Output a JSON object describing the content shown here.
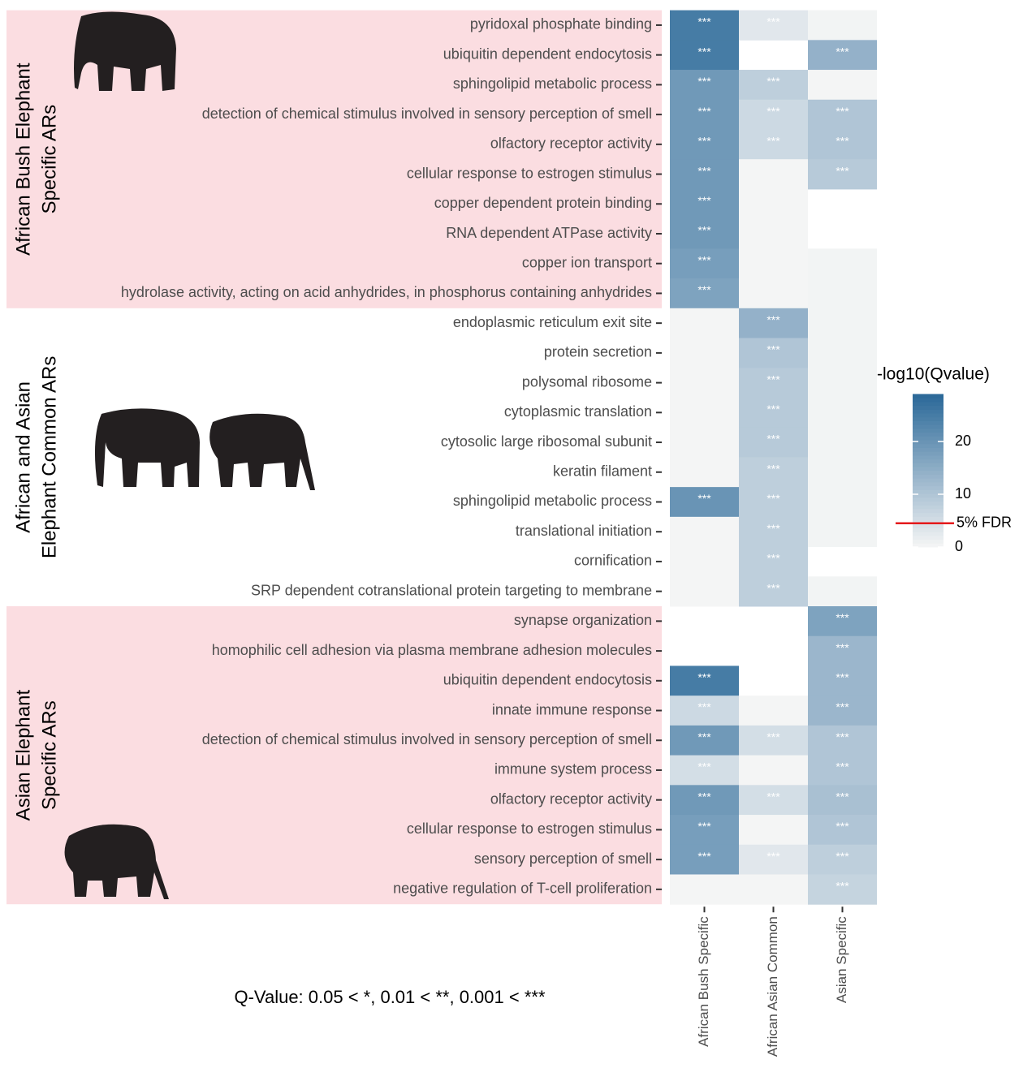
{
  "chart_data": {
    "type": "heatmap",
    "columns": [
      "African Bush Specific",
      "African Asian Common",
      "Asian Specific"
    ],
    "low_color": "#f6f6f6",
    "high_color": "#2a6898",
    "star_color": "#ffffff",
    "groups": [
      {
        "label": [
          "African Bush Elephant",
          "Specific ARs"
        ],
        "background": "#fbdde1",
        "categories": [
          "pyridoxal phosphate binding",
          "ubiquitin dependent endocytosis",
          "sphingolipid metabolic process",
          "detection of chemical stimulus involved in sensory perception of smell",
          "olfactory receptor activity",
          "cellular response to estrogen stimulus",
          "copper dependent protein binding",
          "RNA dependent ATPase activity",
          "copper ion transport",
          "hydrolase activity, acting on acid anhydrides, in phosphorus containing anhydrides"
        ],
        "values": [
          [
            25,
            3,
            0.5
          ],
          [
            25,
            null,
            14
          ],
          [
            19,
            8,
            0.3
          ],
          [
            19,
            6,
            10
          ],
          [
            19,
            6,
            10
          ],
          [
            19,
            0.3,
            9
          ],
          [
            19,
            0.3,
            null
          ],
          [
            19,
            0.3,
            null
          ],
          [
            18,
            0.3,
            0.5
          ],
          [
            17,
            0.3,
            0.5
          ]
        ],
        "stars": [
          [
            "***",
            "***",
            null
          ],
          [
            "***",
            null,
            "***"
          ],
          [
            "***",
            "***",
            null
          ],
          [
            "***",
            "***",
            "***"
          ],
          [
            "***",
            "***",
            "***"
          ],
          [
            "***",
            null,
            "***"
          ],
          [
            "***",
            null,
            null
          ],
          [
            "***",
            null,
            null
          ],
          [
            "***",
            null,
            null
          ],
          [
            "***",
            null,
            null
          ]
        ]
      },
      {
        "label": [
          "African  and Asian",
          "Elephant Common ARs"
        ],
        "categories": [
          "endoplasmic reticulum exit site",
          "protein secretion",
          "polysomal ribosome",
          "cytoplasmic translation",
          "cytosolic large ribosomal subunit",
          "keratin filament",
          "sphingolipid metabolic process",
          "translational initiation",
          "cornification",
          "SRP dependent cotranslational protein targeting to membrane"
        ],
        "values": [
          [
            0.3,
            14,
            0.5
          ],
          [
            0.3,
            10,
            0.5
          ],
          [
            0.3,
            9,
            0.5
          ],
          [
            0.3,
            9,
            0.5
          ],
          [
            0.3,
            9,
            0.5
          ],
          [
            0.3,
            8,
            0.5
          ],
          [
            20,
            8,
            0.5
          ],
          [
            0.3,
            8,
            0.5
          ],
          [
            0.3,
            8,
            null
          ],
          [
            0.3,
            8,
            0.5
          ]
        ],
        "stars": [
          [
            null,
            "***",
            null
          ],
          [
            null,
            "***",
            null
          ],
          [
            null,
            "***",
            null
          ],
          [
            null,
            "***",
            null
          ],
          [
            null,
            "***",
            null
          ],
          [
            null,
            "***",
            null
          ],
          [
            "***",
            "***",
            null
          ],
          [
            null,
            "***",
            null
          ],
          [
            null,
            "***",
            null
          ],
          [
            null,
            "***",
            null
          ]
        ]
      },
      {
        "label": [
          "Asian Elephant",
          "Specific ARs"
        ],
        "background": "#fbdde1",
        "categories": [
          "synapse organization",
          "homophilic cell adhesion via plasma membrane adhesion molecules",
          "ubiquitin dependent endocytosis",
          "innate immune response",
          "detection of chemical stimulus involved in sensory perception of smell",
          "immune system process",
          "olfactory receptor activity",
          "cellular response to estrogen stimulus",
          "sensory perception of smell",
          "negative regulation of T-cell proliferation"
        ],
        "values": [
          [
            null,
            null,
            17
          ],
          [
            null,
            null,
            13
          ],
          [
            25,
            null,
            13
          ],
          [
            6,
            0.3,
            13
          ],
          [
            19,
            5,
            10
          ],
          [
            5,
            0.3,
            10
          ],
          [
            19,
            5,
            11
          ],
          [
            18,
            0.3,
            10
          ],
          [
            18,
            3,
            8
          ],
          [
            0.3,
            0.3,
            7
          ]
        ],
        "stars": [
          [
            null,
            null,
            "***"
          ],
          [
            null,
            null,
            "***"
          ],
          [
            "***",
            null,
            "***"
          ],
          [
            "***",
            null,
            "***"
          ],
          [
            "***",
            "***",
            "***"
          ],
          [
            "***",
            null,
            "***"
          ],
          [
            "***",
            "***",
            "***"
          ],
          [
            "***",
            null,
            "***"
          ],
          [
            "***",
            "***",
            "***"
          ],
          [
            null,
            null,
            "***"
          ]
        ]
      }
    ],
    "legend_title": "-log10(Qvalue)",
    "zlim": [
      0,
      29
    ],
    "zticks": [
      0,
      10,
      20
    ],
    "threshold": {
      "value": 4.5,
      "label": "5% FDR",
      "color": "#e41a1c"
    },
    "note": "Q-Value: 0.05 <  *, 0.01 < **, 0.001 < ***"
  }
}
